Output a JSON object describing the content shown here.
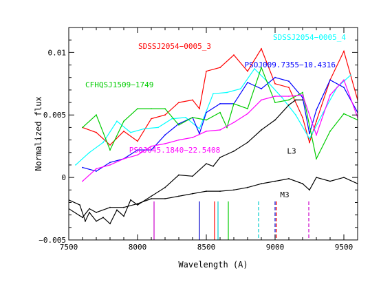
{
  "chart_data": {
    "type": "line",
    "xlabel": "Wavelength (A)",
    "ylabel": "Normalized flux",
    "xlim": [
      7500,
      9600
    ],
    "ylim": [
      -0.005,
      0.012
    ],
    "x_ticks": [
      7500,
      8000,
      8500,
      9000,
      9500
    ],
    "y_ticks": [
      -0.005,
      0,
      0.005,
      0.01
    ],
    "y_tick_labels": [
      "−0.005",
      "0",
      "0.005",
      "0.01"
    ],
    "grid": false,
    "legend": "none (series labelled directly on plot)",
    "series": [
      {
        "name": "SDSSJ2054−0005_3",
        "color": "#ff0000",
        "x": [
          7600,
          7700,
          7800,
          7900,
          8000,
          8100,
          8200,
          8300,
          8400,
          8450,
          8500,
          8600,
          8700,
          8800,
          8900,
          9000,
          9100,
          9200,
          9250,
          9300,
          9400,
          9500,
          9600
        ],
        "y": [
          0.004,
          0.0036,
          0.0026,
          0.0037,
          0.0029,
          0.0047,
          0.005,
          0.006,
          0.0062,
          0.0055,
          0.0085,
          0.0088,
          0.0098,
          0.0085,
          0.0103,
          0.0075,
          0.0072,
          0.0048,
          0.0028,
          0.0045,
          0.0078,
          0.0101,
          0.0062
        ]
      },
      {
        "name": "SDSSJ2054−0005_4",
        "color": "#00ffff",
        "x": [
          7550,
          7650,
          7750,
          7850,
          7950,
          8050,
          8150,
          8250,
          8350,
          8450,
          8550,
          8650,
          8750,
          8850,
          8950,
          9050,
          9150,
          9250,
          9350,
          9450,
          9550
        ],
        "y": [
          0.001,
          0.002,
          0.0028,
          0.0045,
          0.0036,
          0.0039,
          0.004,
          0.0047,
          0.0048,
          0.0039,
          0.0067,
          0.0068,
          0.0071,
          0.0087,
          0.0076,
          0.0064,
          0.005,
          0.0031,
          0.0052,
          0.0072,
          0.0082
        ]
      },
      {
        "name": "PSOJ009.7355−10.4316",
        "color": "#0000ff",
        "x": [
          7600,
          7700,
          7800,
          7900,
          8000,
          8100,
          8200,
          8300,
          8400,
          8450,
          8500,
          8600,
          8700,
          8800,
          8900,
          9000,
          9100,
          9200,
          9250,
          9300,
          9400,
          9500,
          9600
        ],
        "y": [
          0.0008,
          0.0005,
          0.0012,
          0.0015,
          0.0022,
          0.0022,
          0.0034,
          0.0043,
          0.0048,
          0.0035,
          0.0052,
          0.0059,
          0.0059,
          0.0076,
          0.0071,
          0.008,
          0.0077,
          0.0064,
          0.0035,
          0.0054,
          0.0078,
          0.0072,
          0.0052
        ]
      },
      {
        "name": "CFHQSJ1509−1749",
        "color": "#00cc00",
        "x": [
          7600,
          7700,
          7800,
          7900,
          8000,
          8100,
          8200,
          8300,
          8400,
          8500,
          8600,
          8650,
          8700,
          8800,
          8900,
          9000,
          9100,
          9200,
          9300,
          9400,
          9500,
          9600
        ],
        "y": [
          0.004,
          0.005,
          0.0022,
          0.0045,
          0.0055,
          0.0055,
          0.0055,
          0.0042,
          0.0048,
          0.0046,
          0.0052,
          0.004,
          0.0059,
          0.0055,
          0.0088,
          0.006,
          0.0062,
          0.0068,
          0.0015,
          0.0037,
          0.0051,
          0.0046
        ]
      },
      {
        "name": "PSOJ045.1840−22.5408",
        "color": "#ff00ff",
        "x": [
          7600,
          7700,
          7800,
          7900,
          8000,
          8100,
          8200,
          8300,
          8400,
          8500,
          8600,
          8700,
          8800,
          8900,
          9000,
          9100,
          9200,
          9300,
          9400,
          9500,
          9600
        ],
        "y": [
          -0.0003,
          0.0007,
          0.001,
          0.0015,
          0.0018,
          0.0025,
          0.0027,
          0.003,
          0.0032,
          0.0037,
          0.0038,
          0.0044,
          0.0051,
          0.0062,
          0.0065,
          0.0065,
          0.0066,
          0.0034,
          0.0066,
          0.0078,
          0.0048
        ]
      },
      {
        "name": "L3",
        "color": "#000000",
        "x": [
          7500,
          7580,
          7620,
          7650,
          7700,
          7750,
          7800,
          7850,
          7900,
          7950,
          8000,
          8100,
          8200,
          8300,
          8400,
          8500,
          8550,
          8600,
          8700,
          8800,
          8900,
          9000,
          9100,
          9150,
          9200
        ],
        "y": [
          -0.0018,
          -0.0022,
          -0.0035,
          -0.0028,
          -0.0035,
          -0.0032,
          -0.0037,
          -0.0026,
          -0.0031,
          -0.0018,
          -0.0022,
          -0.0015,
          -0.0008,
          0.0002,
          0.0001,
          0.0011,
          0.0009,
          0.0016,
          0.0021,
          0.0028,
          0.0038,
          0.0046,
          0.0058,
          0.0062,
          0.0062
        ]
      },
      {
        "name": "M3",
        "color": "#000000",
        "x": [
          7500,
          7600,
          7650,
          7700,
          7800,
          7900,
          8000,
          8100,
          8200,
          8300,
          8400,
          8500,
          8600,
          8700,
          8800,
          8900,
          9000,
          9100,
          9200,
          9250,
          9300,
          9400,
          9500,
          9600
        ],
        "y": [
          -0.0025,
          -0.0032,
          -0.0025,
          -0.0028,
          -0.0024,
          -0.0024,
          -0.0021,
          -0.0017,
          -0.0017,
          -0.0015,
          -0.0013,
          -0.0011,
          -0.0011,
          -0.001,
          -0.0008,
          -0.0005,
          -0.0003,
          -0.0001,
          -0.0005,
          -0.001,
          0.0,
          -0.0003,
          0.0,
          -0.0005
        ]
      }
    ],
    "annotations": [
      {
        "text": "SDSSJ2054−0005_3",
        "x": 8270,
        "y": 0.0103,
        "color": "#ff0000"
      },
      {
        "text": "SDSSJ2054−0005_4",
        "x": 9250,
        "y": 0.011,
        "color": "#00ffff"
      },
      {
        "text": "PSOJ009.7355−10.4316",
        "x": 9440,
        "y": 0.0088,
        "color": "#0000ff"
      },
      {
        "text": "CFHQSJ1509−1749",
        "x": 7620,
        "y": 0.0072,
        "color": "#00cc00"
      },
      {
        "text": "PSOJ045.1840−22.5408",
        "x": 8270,
        "y": 0.002,
        "color": "#ff00ff"
      },
      {
        "text": "L3",
        "x": 9120,
        "y": 0.0019,
        "color": "#000000"
      },
      {
        "text": "M3",
        "x": 9070,
        "y": -0.0016,
        "color": "#000000"
      }
    ],
    "vertical_markers": [
      {
        "x": 8120,
        "color": "#cc00cc",
        "style": "solid"
      },
      {
        "x": 8450,
        "color": "#0000cc",
        "style": "solid"
      },
      {
        "x": 8560,
        "color": "#ff0000",
        "style": "solid"
      },
      {
        "x": 8585,
        "color": "#00cccc",
        "style": "solid"
      },
      {
        "x": 8660,
        "color": "#00cc00",
        "style": "solid"
      },
      {
        "x": 8880,
        "color": "#00cccc",
        "style": "dashed"
      },
      {
        "x": 9000,
        "color": "#0000cc",
        "style": "dashed"
      },
      {
        "x": 9000,
        "color": "#ff0000",
        "style": "dashed"
      },
      {
        "x": 9245,
        "color": "#cc00cc",
        "style": "dashed"
      }
    ]
  }
}
